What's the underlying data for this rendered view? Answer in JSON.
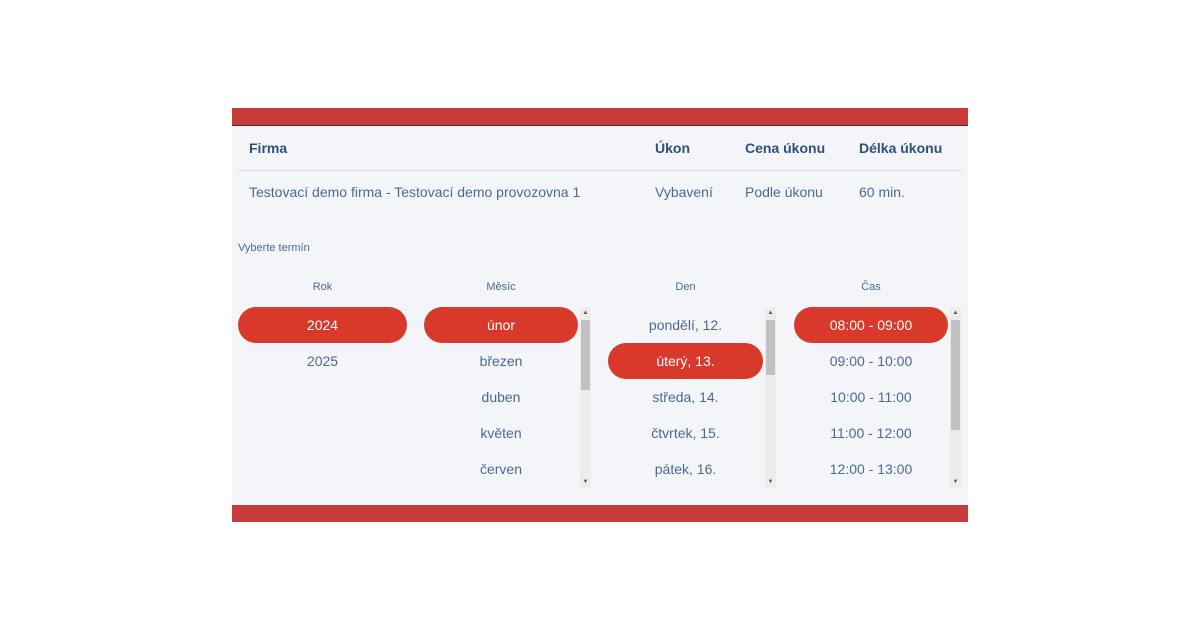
{
  "colors": {
    "accent": "#d9392a",
    "bar": "#c93a3a"
  },
  "table": {
    "headers": {
      "firma": "Firma",
      "ukon": "Úkon",
      "cena": "Cena úkonu",
      "delka": "Délka úkonu"
    },
    "row": {
      "firma": "Testovací demo firma - Testovací demo provozovna 1",
      "ukon": "Vybavení",
      "cena": "Podle úkonu",
      "delka": "60 min."
    }
  },
  "picker": {
    "hint": "Vyberte termín",
    "columns": {
      "rok": "Rok",
      "mesic": "Měsíc",
      "den": "Den",
      "cas": "Čas"
    },
    "years": [
      "2024",
      "2025"
    ],
    "months": [
      "únor",
      "březen",
      "duben",
      "květen",
      "červen"
    ],
    "days": [
      "pondělí, 12.",
      "úterý, 13.",
      "středa, 14.",
      "čtvrtek, 15.",
      "pátek, 16."
    ],
    "times": [
      "08:00 - 09:00",
      "09:00 - 10:00",
      "10:00 - 11:00",
      "11:00 - 12:00",
      "12:00 - 13:00"
    ],
    "selected": {
      "year": "2024",
      "month": "únor",
      "day": "úterý, 13.",
      "time": "08:00 - 09:00"
    }
  }
}
